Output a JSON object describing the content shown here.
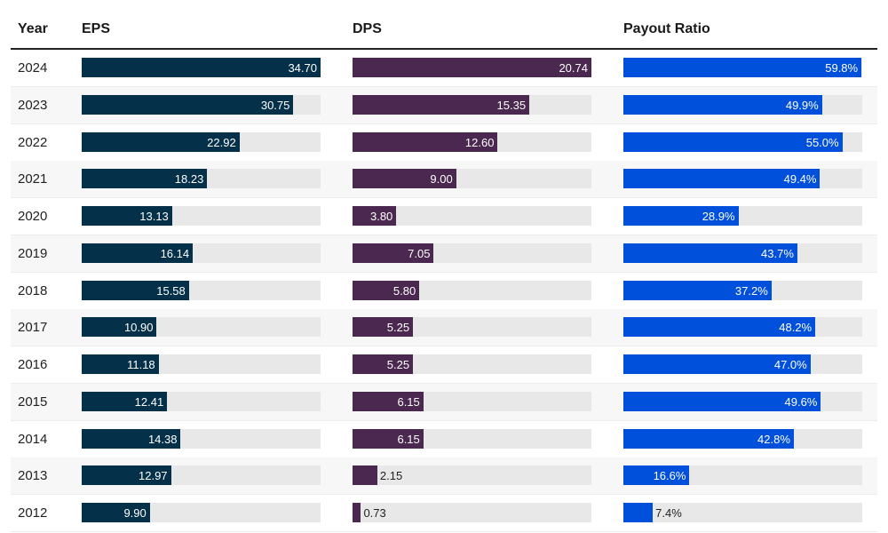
{
  "chart_data": {
    "type": "table",
    "headers": {
      "year": "Year",
      "eps": "EPS",
      "dps": "DPS",
      "payout": "Payout Ratio"
    },
    "colors": {
      "eps": "#05304a",
      "dps": "#4b2850",
      "payout": "#0050dc",
      "track": "#e8e8e8"
    },
    "scales": {
      "eps": 34.7,
      "dps": 20.74,
      "payout": 60
    },
    "rows": [
      {
        "year": "2024",
        "eps": 34.7,
        "eps_label": "34.70",
        "dps": 20.74,
        "dps_label": "20.74",
        "payout": 59.8,
        "payout_label": "59.8%"
      },
      {
        "year": "2023",
        "eps": 30.75,
        "eps_label": "30.75",
        "dps": 15.35,
        "dps_label": "15.35",
        "payout": 49.9,
        "payout_label": "49.9%"
      },
      {
        "year": "2022",
        "eps": 22.92,
        "eps_label": "22.92",
        "dps": 12.6,
        "dps_label": "12.60",
        "payout": 55.0,
        "payout_label": "55.0%"
      },
      {
        "year": "2021",
        "eps": 18.23,
        "eps_label": "18.23",
        "dps": 9.0,
        "dps_label": "9.00",
        "payout": 49.4,
        "payout_label": "49.4%"
      },
      {
        "year": "2020",
        "eps": 13.13,
        "eps_label": "13.13",
        "dps": 3.8,
        "dps_label": "3.80",
        "payout": 28.9,
        "payout_label": "28.9%"
      },
      {
        "year": "2019",
        "eps": 16.14,
        "eps_label": "16.14",
        "dps": 7.05,
        "dps_label": "7.05",
        "payout": 43.7,
        "payout_label": "43.7%"
      },
      {
        "year": "2018",
        "eps": 15.58,
        "eps_label": "15.58",
        "dps": 5.8,
        "dps_label": "5.80",
        "payout": 37.2,
        "payout_label": "37.2%"
      },
      {
        "year": "2017",
        "eps": 10.9,
        "eps_label": "10.90",
        "dps": 5.25,
        "dps_label": "5.25",
        "payout": 48.2,
        "payout_label": "48.2%"
      },
      {
        "year": "2016",
        "eps": 11.18,
        "eps_label": "11.18",
        "dps": 5.25,
        "dps_label": "5.25",
        "payout": 47.0,
        "payout_label": "47.0%"
      },
      {
        "year": "2015",
        "eps": 12.41,
        "eps_label": "12.41",
        "dps": 6.15,
        "dps_label": "6.15",
        "payout": 49.6,
        "payout_label": "49.6%"
      },
      {
        "year": "2014",
        "eps": 14.38,
        "eps_label": "14.38",
        "dps": 6.15,
        "dps_label": "6.15",
        "payout": 42.8,
        "payout_label": "42.8%"
      },
      {
        "year": "2013",
        "eps": 12.97,
        "eps_label": "12.97",
        "dps": 2.15,
        "dps_label": "2.15",
        "payout": 16.6,
        "payout_label": "16.6%"
      },
      {
        "year": "2012",
        "eps": 9.9,
        "eps_label": "9.90",
        "dps": 0.73,
        "dps_label": "0.73",
        "payout": 7.4,
        "payout_label": "7.4%"
      }
    ]
  }
}
